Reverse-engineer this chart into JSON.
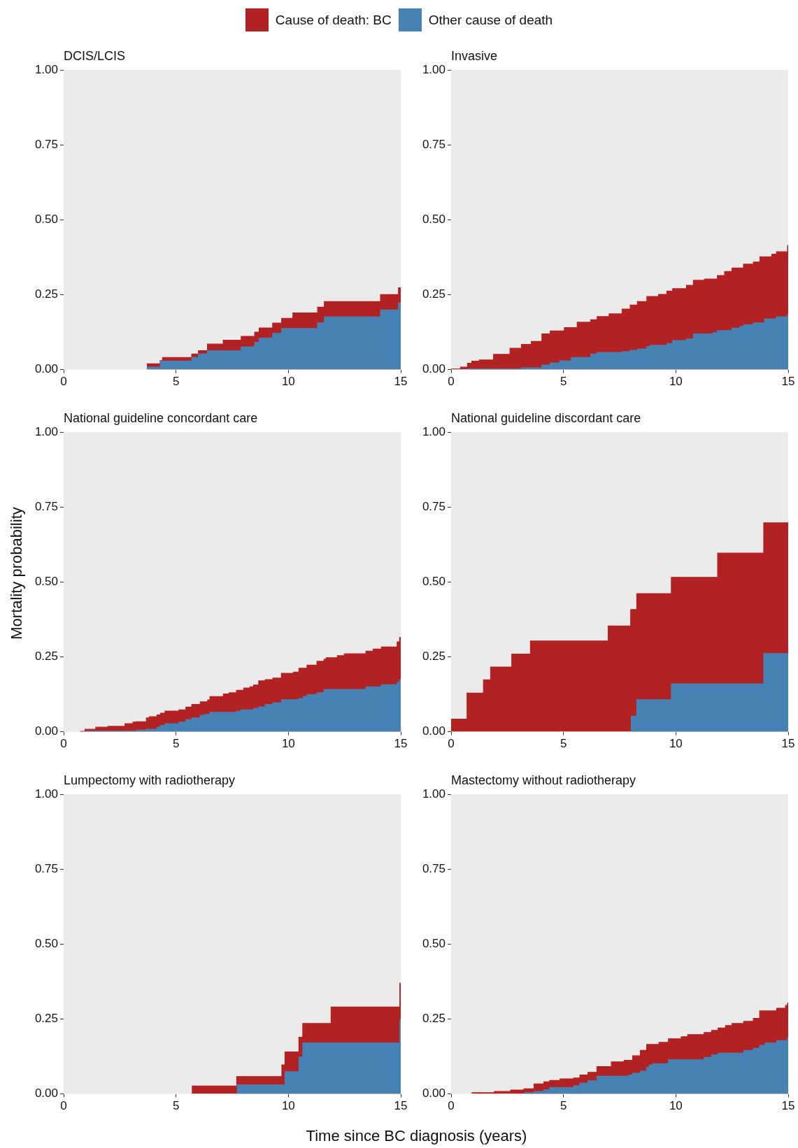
{
  "chart_data": [
    {
      "type": "area",
      "stacked": true,
      "title": "DCIS/LCIS",
      "legend": "top",
      "xlim": [
        0,
        15
      ],
      "ylim": [
        0,
        1
      ],
      "xticks": [
        0,
        5,
        10,
        15
      ],
      "yticks": [
        {
          "value": 0,
          "label": "0.00"
        },
        {
          "value": 0.25,
          "label": "0.25"
        },
        {
          "value": 0.5,
          "label": "0.50"
        },
        {
          "value": 0.75,
          "label": "0.75"
        },
        {
          "value": 1,
          "label": "1.00"
        }
      ],
      "x": [
        3.7,
        4.3,
        4.3,
        4.4,
        4.4,
        5.7,
        5.7,
        6.0,
        6.0,
        6.4,
        6.4,
        7.1,
        7.1,
        7.9,
        7.9,
        8.5,
        8.5,
        8.7,
        8.7,
        9.3,
        9.3,
        9.7,
        9.7,
        10.2,
        10.2,
        11.3,
        11.3,
        11.6,
        11.6,
        14.1,
        14.1,
        14.9,
        14.9,
        15,
        15
      ],
      "series": [
        {
          "name": "Other cause of death",
          "color": "#4682b4",
          "values": [
            0.008,
            0.008,
            0.028,
            0.028,
            0.028,
            0.028,
            0.04,
            0.04,
            0.052,
            0.052,
            0.063,
            0.063,
            0.063,
            0.063,
            0.076,
            0.076,
            0.091,
            0.091,
            0.105,
            0.105,
            0.121,
            0.121,
            0.137,
            0.137,
            0.137,
            0.137,
            0.156,
            0.156,
            0.176,
            0.176,
            0.199,
            0.199,
            0.222,
            0.222,
            0.222
          ]
        },
        {
          "name": "Cause of death: BC",
          "color": "#b22222",
          "values": [
            0.011,
            0.011,
            0.002,
            0.002,
            0.012,
            0.012,
            0.012,
            0.012,
            0.011,
            0.011,
            0.022,
            0.022,
            0.035,
            0.035,
            0.035,
            0.035,
            0.034,
            0.034,
            0.034,
            0.034,
            0.034,
            0.034,
            0.034,
            0.034,
            0.052,
            0.052,
            0.052,
            0.052,
            0.051,
            0.051,
            0.051,
            0.051,
            0.051,
            0.051,
            0.051
          ]
        }
      ]
    },
    {
      "type": "area",
      "stacked": true,
      "title": "Invasive",
      "xlim": [
        0,
        15
      ],
      "ylim": [
        0,
        1
      ],
      "xticks": [
        0,
        5,
        10,
        15
      ],
      "yticks": [
        {
          "value": 0,
          "label": "0.00"
        },
        {
          "value": 0.25,
          "label": "0.25"
        },
        {
          "value": 0.5,
          "label": "0.50"
        },
        {
          "value": 0.75,
          "label": "0.75"
        },
        {
          "value": 1,
          "label": "1.00"
        }
      ],
      "x": [
        0,
        0.42,
        0.42,
        0.73,
        0.73,
        0.92,
        0.92,
        1.26,
        1.26,
        1.89,
        1.89,
        2.62,
        2.62,
        3.13,
        3.13,
        3.57,
        3.57,
        4.04,
        4.04,
        4.41,
        4.41,
        4.83,
        4.83,
        5.04,
        5.04,
        5.35,
        5.35,
        5.61,
        5.61,
        6.21,
        6.21,
        6.5,
        6.5,
        7.03,
        7.03,
        7.61,
        7.61,
        7.97,
        7.97,
        8.29,
        8.29,
        8.71,
        8.71,
        8.86,
        8.86,
        9.23,
        9.23,
        9.6,
        9.6,
        9.86,
        9.86,
        10.47,
        10.47,
        10.78,
        10.78,
        11.28,
        11.28,
        11.64,
        11.64,
        11.85,
        11.85,
        12.17,
        12.17,
        12.5,
        12.5,
        12.85,
        12.85,
        13.01,
        13.01,
        13.45,
        13.45,
        13.74,
        13.74,
        13.95,
        13.95,
        14.27,
        14.27,
        14.48,
        14.48,
        14.97,
        14.97,
        15
      ],
      "series": [
        {
          "color": "#4682b4",
          "values": [
            null,
            null,
            null,
            null,
            0.002,
            0.002,
            0.002,
            0.002,
            0.002,
            0.002,
            0.002,
            0.002,
            0.002,
            0.002,
            0.006,
            0.006,
            0.006,
            0.006,
            0.015,
            0.015,
            0.022,
            0.022,
            0.029,
            0.029,
            0.029,
            0.029,
            0.04,
            0.04,
            0.04,
            0.04,
            0.052,
            0.052,
            0.057,
            0.057,
            0.057,
            0.057,
            0.06,
            0.06,
            0.064,
            0.064,
            0.069,
            0.069,
            0.077,
            0.077,
            0.081,
            0.081,
            0.081,
            0.081,
            0.087,
            0.087,
            0.097,
            0.097,
            0.102,
            0.102,
            0.119,
            0.119,
            0.119,
            0.119,
            0.123,
            0.123,
            0.13,
            0.13,
            0.13,
            0.13,
            0.138,
            0.138,
            0.144,
            0.144,
            0.15,
            0.15,
            0.156,
            0.156,
            0.156,
            0.156,
            0.169,
            0.169,
            0.169,
            0.169,
            0.176,
            0.176,
            0.184,
            0.184
          ]
        },
        {
          "color": "#b22222",
          "values": [
            0.002,
            0.002,
            0.008,
            0.008,
            0.019,
            0.019,
            0.026,
            0.026,
            0.03,
            0.03,
            0.049,
            0.049,
            0.069,
            0.069,
            0.078,
            0.078,
            0.088,
            0.088,
            0.104,
            0.104,
            0.107,
            0.107,
            0.1,
            0.1,
            0.111,
            0.111,
            0.1,
            0.1,
            0.118,
            0.118,
            0.114,
            0.114,
            0.12,
            0.12,
            0.129,
            0.129,
            0.142,
            0.142,
            0.151,
            0.151,
            0.158,
            0.158,
            0.167,
            0.167,
            0.163,
            0.163,
            0.17,
            0.17,
            0.175,
            0.175,
            0.173,
            0.173,
            0.179,
            0.179,
            0.179,
            0.179,
            0.183,
            0.183,
            0.179,
            0.179,
            0.184,
            0.184,
            0.197,
            0.197,
            0.201,
            0.201,
            0.195,
            0.195,
            0.202,
            0.202,
            0.203,
            0.203,
            0.22,
            0.22,
            0.207,
            0.207,
            0.216,
            0.216,
            0.217,
            0.217,
            0.23,
            0.23
          ]
        }
      ]
    },
    {
      "type": "area",
      "stacked": true,
      "title": "National guideline concordant care",
      "ylabel": "Mortality probability",
      "xlim": [
        0,
        15
      ],
      "ylim": [
        0,
        1
      ],
      "xticks": [
        0,
        5,
        10,
        15
      ],
      "yticks": [
        {
          "value": 0,
          "label": "0.00"
        },
        {
          "value": 0.25,
          "label": "0.25"
        },
        {
          "value": 0.5,
          "label": "0.50"
        },
        {
          "value": 0.75,
          "label": "0.75"
        },
        {
          "value": 1,
          "label": "1.00"
        }
      ],
      "x": [
        0.73,
        0.95,
        0.95,
        1.43,
        1.43,
        1.97,
        1.97,
        2.73,
        2.73,
        3.08,
        3.08,
        3.21,
        3.21,
        3.68,
        3.68,
        3.81,
        3.81,
        4.15,
        4.15,
        4.31,
        4.31,
        4.51,
        4.51,
        5.13,
        5.13,
        5.44,
        5.44,
        5.7,
        5.7,
        6.08,
        6.08,
        6.27,
        6.27,
        6.41,
        6.41,
        6.51,
        6.51,
        7.11,
        7.11,
        7.36,
        7.36,
        7.69,
        7.69,
        7.88,
        7.88,
        8.01,
        8.01,
        8.29,
        8.29,
        8.45,
        8.45,
        8.68,
        8.68,
        8.97,
        8.97,
        9.31,
        9.31,
        9.69,
        9.69,
        10.23,
        10.23,
        10.47,
        10.47,
        10.66,
        10.66,
        10.83,
        10.83,
        11.27,
        11.27,
        11.59,
        11.59,
        11.68,
        11.68,
        12.18,
        12.18,
        12.49,
        12.49,
        13.45,
        13.45,
        13.77,
        13.77,
        14.14,
        14.14,
        14.84,
        14.84,
        14.95,
        14.95,
        15,
        15
      ],
      "series": [
        {
          "color": "#4682b4",
          "values": [
            null,
            null,
            0.002,
            0.002,
            0.002,
            0.002,
            0.002,
            0.002,
            0.002,
            0.002,
            0.002,
            0.002,
            0.005,
            0.005,
            0.008,
            0.008,
            0.008,
            0.008,
            0.015,
            0.015,
            0.021,
            0.021,
            0.027,
            0.027,
            0.032,
            0.032,
            0.04,
            0.04,
            0.046,
            0.046,
            0.055,
            0.055,
            0.058,
            0.058,
            0.058,
            0.058,
            0.065,
            0.065,
            0.065,
            0.065,
            0.065,
            0.065,
            0.069,
            0.069,
            0.073,
            0.073,
            0.073,
            0.073,
            0.073,
            0.073,
            0.078,
            0.078,
            0.083,
            0.083,
            0.091,
            0.091,
            0.097,
            0.097,
            0.107,
            0.107,
            0.107,
            0.107,
            0.111,
            0.111,
            0.118,
            0.118,
            0.124,
            0.124,
            0.13,
            0.13,
            0.141,
            0.141,
            0.141,
            0.141,
            0.141,
            0.141,
            0.141,
            0.141,
            0.15,
            0.15,
            0.15,
            0.15,
            0.157,
            0.157,
            0.165,
            0.165,
            0.174,
            0.174,
            0.174
          ]
        },
        {
          "color": "#b22222",
          "values": [
            0.001,
            0.001,
            0.006,
            0.006,
            0.013,
            0.013,
            0.016,
            0.016,
            0.025,
            0.025,
            0.03,
            0.03,
            0.028,
            0.028,
            0.038,
            0.038,
            0.042,
            0.042,
            0.041,
            0.041,
            0.041,
            0.041,
            0.042,
            0.042,
            0.041,
            0.041,
            0.042,
            0.042,
            0.045,
            0.045,
            0.045,
            0.045,
            0.042,
            0.042,
            0.048,
            0.048,
            0.052,
            0.052,
            0.061,
            0.061,
            0.065,
            0.065,
            0.069,
            0.069,
            0.065,
            0.065,
            0.073,
            0.073,
            0.077,
            0.077,
            0.078,
            0.078,
            0.087,
            0.087,
            0.083,
            0.083,
            0.082,
            0.082,
            0.088,
            0.088,
            0.092,
            0.092,
            0.101,
            0.101,
            0.094,
            0.094,
            0.098,
            0.098,
            0.105,
            0.105,
            0.101,
            0.101,
            0.106,
            0.106,
            0.113,
            0.113,
            0.119,
            0.119,
            0.119,
            0.119,
            0.126,
            0.126,
            0.126,
            0.126,
            0.135,
            0.135,
            0.141,
            0.141,
            0.141
          ]
        }
      ]
    },
    {
      "type": "area",
      "stacked": true,
      "title": "National guideline discordant care",
      "xlim": [
        0,
        15
      ],
      "ylim": [
        0,
        1
      ],
      "xticks": [
        0,
        5,
        10,
        15
      ],
      "yticks": [
        {
          "value": 0,
          "label": "0.00"
        },
        {
          "value": 0.25,
          "label": "0.25"
        },
        {
          "value": 0.5,
          "label": "0.50"
        },
        {
          "value": 0.75,
          "label": "0.75"
        },
        {
          "value": 1,
          "label": "1.00"
        }
      ],
      "x": [
        0,
        0.71,
        0.71,
        1.44,
        1.44,
        1.76,
        1.76,
        2.7,
        2.7,
        3.53,
        3.53,
        6.99,
        6.99,
        7.99,
        7.99,
        8.26,
        8.26,
        9.8,
        9.8,
        11.86,
        11.86,
        13.91,
        13.91,
        15,
        15
      ],
      "series": [
        {
          "color": "#4682b4",
          "values": [
            null,
            null,
            null,
            null,
            null,
            null,
            null,
            null,
            null,
            null,
            null,
            null,
            null,
            null,
            0.052,
            0.052,
            0.107,
            0.107,
            0.16,
            0.16,
            0.16,
            0.16,
            0.261,
            0.261,
            0.261
          ]
        },
        {
          "color": "#b22222",
          "values": [
            0.042,
            0.042,
            0.129,
            0.129,
            0.173,
            0.173,
            0.216,
            0.216,
            0.259,
            0.259,
            0.303,
            0.303,
            0.353,
            0.353,
            0.356,
            0.356,
            0.354,
            0.354,
            0.355,
            0.355,
            0.436,
            0.436,
            0.436,
            0.436,
            0.436
          ]
        }
      ]
    },
    {
      "type": "area",
      "stacked": true,
      "title": "Lumpectomy with radiotherapy",
      "xlabel": "Time since BC diagnosis (years)",
      "xlim": [
        0,
        15
      ],
      "ylim": [
        0,
        1
      ],
      "xticks": [
        0,
        5,
        10,
        15
      ],
      "yticks": [
        {
          "value": 0,
          "label": "0.00"
        },
        {
          "value": 0.25,
          "label": "0.25"
        },
        {
          "value": 0.5,
          "label": "0.50"
        },
        {
          "value": 0.75,
          "label": "0.75"
        },
        {
          "value": 1,
          "label": "1.00"
        }
      ],
      "x": [
        5.7,
        7.7,
        7.7,
        9.71,
        9.71,
        9.85,
        9.85,
        10.47,
        10.47,
        10.64,
        10.64,
        11.9,
        11.9,
        14.96,
        14.96,
        15,
        15
      ],
      "series": [
        {
          "color": "#4682b4",
          "values": [
            null,
            null,
            0.03,
            0.03,
            0.03,
            0.03,
            0.074,
            0.074,
            0.123,
            0.123,
            0.17,
            0.17,
            0.17,
            0.17,
            0.248,
            0.248,
            0.248
          ]
        },
        {
          "color": "#b22222",
          "values": [
            0.026,
            0.026,
            0.028,
            0.028,
            0.067,
            0.067,
            0.066,
            0.066,
            0.066,
            0.066,
            0.065,
            0.065,
            0.12,
            0.12,
            0.121,
            0.121,
            0.121
          ]
        }
      ]
    },
    {
      "type": "area",
      "stacked": true,
      "title": "Mastectomy without radiotherapy",
      "xlim": [
        0,
        15
      ],
      "ylim": [
        0,
        1
      ],
      "xticks": [
        0,
        5,
        10,
        15
      ],
      "yticks": [
        {
          "value": 0,
          "label": "0.00"
        },
        {
          "value": 0.25,
          "label": "0.25"
        },
        {
          "value": 0.5,
          "label": "0.50"
        },
        {
          "value": 0.75,
          "label": "0.75"
        },
        {
          "value": 1,
          "label": "1.00"
        }
      ],
      "x": [
        0.91,
        1.93,
        1.93,
        2.65,
        2.65,
        3.24,
        3.24,
        3.69,
        3.69,
        4.13,
        4.13,
        4.39,
        4.39,
        4.85,
        4.85,
        5.45,
        5.45,
        5.73,
        5.73,
        6.09,
        6.09,
        6.49,
        6.49,
        7.13,
        7.13,
        7.7,
        7.7,
        7.91,
        7.91,
        8.08,
        8.08,
        8.42,
        8.42,
        8.7,
        8.7,
        8.82,
        8.82,
        8.99,
        8.99,
        9.25,
        9.25,
        9.67,
        9.67,
        10.24,
        10.24,
        10.53,
        10.53,
        11.26,
        11.26,
        11.59,
        11.59,
        11.88,
        11.88,
        12.21,
        12.21,
        12.5,
        12.5,
        13.02,
        13.02,
        13.45,
        13.45,
        13.73,
        13.73,
        13.97,
        13.97,
        14.49,
        14.49,
        14.88,
        14.88,
        14.97,
        14.97,
        15
      ],
      "series": [
        {
          "color": "#4682b4",
          "values": [
            null,
            null,
            null,
            null,
            null,
            null,
            0.004,
            0.004,
            0.008,
            0.008,
            0.014,
            0.014,
            0.021,
            0.021,
            0.021,
            0.021,
            0.027,
            0.027,
            0.036,
            0.036,
            0.044,
            0.044,
            0.059,
            0.059,
            0.059,
            0.059,
            0.059,
            0.059,
            0.063,
            0.063,
            0.069,
            0.069,
            0.076,
            0.076,
            0.088,
            0.088,
            0.097,
            0.097,
            0.101,
            0.101,
            0.101,
            0.101,
            0.114,
            0.114,
            0.114,
            0.114,
            0.114,
            0.114,
            0.122,
            0.122,
            0.13,
            0.13,
            0.136,
            0.136,
            0.136,
            0.136,
            0.136,
            0.136,
            0.145,
            0.145,
            0.152,
            0.152,
            0.162,
            0.162,
            0.17,
            0.17,
            0.178,
            0.178,
            0.178,
            0.178,
            0.187,
            0.187
          ]
        },
        {
          "color": "#b22222",
          "values": [
            0.004,
            0.004,
            0.008,
            0.008,
            0.013,
            0.013,
            0.013,
            0.013,
            0.025,
            0.025,
            0.026,
            0.026,
            0.024,
            0.024,
            0.029,
            0.029,
            0.026,
            0.026,
            0.027,
            0.027,
            0.028,
            0.028,
            0.032,
            0.032,
            0.048,
            0.048,
            0.053,
            0.053,
            0.049,
            0.049,
            0.058,
            0.058,
            0.069,
            0.069,
            0.077,
            0.077,
            0.068,
            0.068,
            0.064,
            0.064,
            0.071,
            0.071,
            0.07,
            0.07,
            0.077,
            0.077,
            0.084,
            0.084,
            0.083,
            0.083,
            0.082,
            0.082,
            0.084,
            0.084,
            0.092,
            0.092,
            0.099,
            0.099,
            0.097,
            0.097,
            0.1,
            0.1,
            0.115,
            0.115,
            0.107,
            0.107,
            0.108,
            0.108,
            0.117,
            0.117,
            0.116,
            0.116
          ]
        }
      ]
    }
  ]
}
